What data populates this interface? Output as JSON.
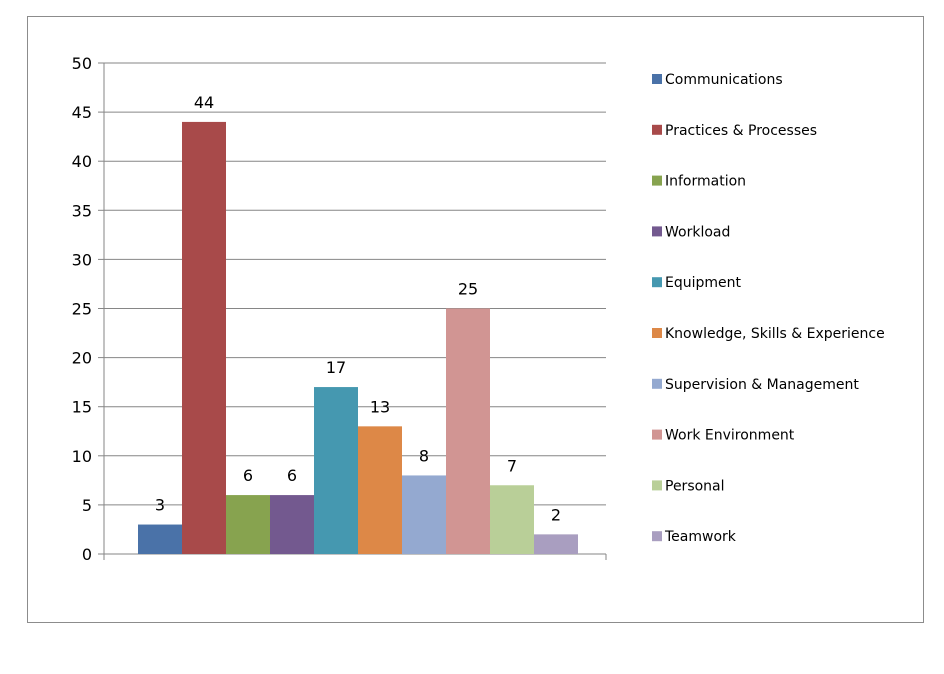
{
  "chart_data": {
    "type": "bar",
    "title": "",
    "xlabel": "",
    "ylabel": "",
    "ylim": [
      0,
      50
    ],
    "y_ticks": [
      "0",
      "5",
      "10",
      "15",
      "20",
      "25",
      "30",
      "35",
      "40",
      "45",
      "50"
    ],
    "grid": true,
    "legend_position": "right",
    "series": [
      {
        "name": "Communications",
        "value": 3,
        "color": "#4a72a8"
      },
      {
        "name": "Practices & Processes",
        "value": 44,
        "color": "#a84a4a"
      },
      {
        "name": "Information",
        "value": 6,
        "color": "#87a34f"
      },
      {
        "name": "Workload",
        "value": 6,
        "color": "#73598f"
      },
      {
        "name": "Equipment",
        "value": 17,
        "color": "#4598b0"
      },
      {
        "name": "Knowledge, Skills & Experience",
        "value": 13,
        "color": "#dd8847"
      },
      {
        "name": "Supervision & Management",
        "value": 8,
        "color": "#94a9d0"
      },
      {
        "name": "Work Environment",
        "value": 25,
        "color": "#d19593"
      },
      {
        "name": "Personal",
        "value": 7,
        "color": "#b9cf98"
      },
      {
        "name": "Teamwork",
        "value": 2,
        "color": "#a99ec0"
      }
    ]
  }
}
